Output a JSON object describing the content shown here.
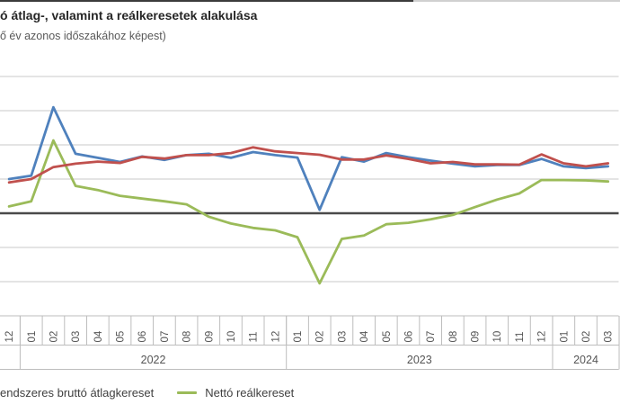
{
  "header": {
    "title": "ó átlag-, valamint a reálkeresetek alakulása",
    "subtitle": "ő év azonos időszakához képest)"
  },
  "legend": {
    "items": [
      {
        "label": "endszeres bruttó átlagkereset",
        "color": "#C0504D",
        "marker_visible": false
      },
      {
        "label": "Nettó reálkereset",
        "color": "#9BBB59",
        "marker_visible": true
      }
    ]
  },
  "colors": {
    "series_blue": "#4F81BD",
    "series_red": "#C0504D",
    "series_green": "#9BBB59",
    "gridline": "#C9C9C9",
    "zero_line": "#4A4A4A",
    "axis_band_border": "#BDBDBD",
    "axis_label": "#555555",
    "top_border_dark": "#3B3B3B",
    "top_border_light": "#D0D0D0"
  },
  "chart_data": {
    "type": "line",
    "title": "ó átlag-, valamint a reálkeresetek alakulása",
    "subtitle": "ő év azonos időszakához képest)",
    "xlabel": "",
    "ylabel": "",
    "ylim": [
      -30,
      40
    ],
    "grid_step": 10,
    "grid": true,
    "zero_line": true,
    "legend_position": "bottom",
    "legend_cut_off_left": true,
    "categories": [
      "12",
      "01",
      "02",
      "03",
      "04",
      "05",
      "06",
      "07",
      "08",
      "09",
      "10",
      "11",
      "12",
      "01",
      "02",
      "03",
      "04",
      "05",
      "06",
      "07",
      "08",
      "09",
      "10",
      "11",
      "12",
      "01",
      "02",
      "03"
    ],
    "year_groups": [
      {
        "label": "2022",
        "start_index": 1,
        "end_index": 12
      },
      {
        "label": "2023",
        "start_index": 13,
        "end_index": 24
      },
      {
        "label": "2024",
        "start_index": 25,
        "end_index": 27
      }
    ],
    "series": [
      {
        "name": "",
        "color": "#4F81BD",
        "values": [
          10,
          11,
          31,
          17.4,
          16.2,
          15,
          16.6,
          15.6,
          17,
          17.4,
          16.2,
          17.9,
          17,
          16.3,
          1,
          16.4,
          15.1,
          17.6,
          16.4,
          15.4,
          14.5,
          13.7,
          14.1,
          14.1,
          15.9,
          13.7,
          13.2,
          13.7
        ]
      },
      {
        "name": "endszeres bruttó átlagkereset",
        "color": "#C0504D",
        "values": [
          9,
          10,
          13.5,
          14.5,
          15.1,
          14.7,
          16.5,
          16,
          17,
          17,
          17.6,
          19.3,
          18.1,
          17.6,
          17.1,
          15.7,
          15.7,
          16.9,
          15.9,
          14.6,
          15,
          14.3,
          14.3,
          14.2,
          17.2,
          14.6,
          13.7,
          14.6
        ]
      },
      {
        "name": "Nettó reálkereset",
        "color": "#9BBB59",
        "values": [
          2,
          3.5,
          21.3,
          8,
          6.8,
          5.1,
          4.3,
          3.5,
          2.6,
          -1,
          -3,
          -4.3,
          -5,
          -7,
          -20.5,
          -7.5,
          -6.5,
          -3.2,
          -2.8,
          -1.8,
          -0.5,
          1.8,
          4,
          5.8,
          9.7,
          9.7,
          9.6,
          9.3
        ]
      }
    ]
  }
}
